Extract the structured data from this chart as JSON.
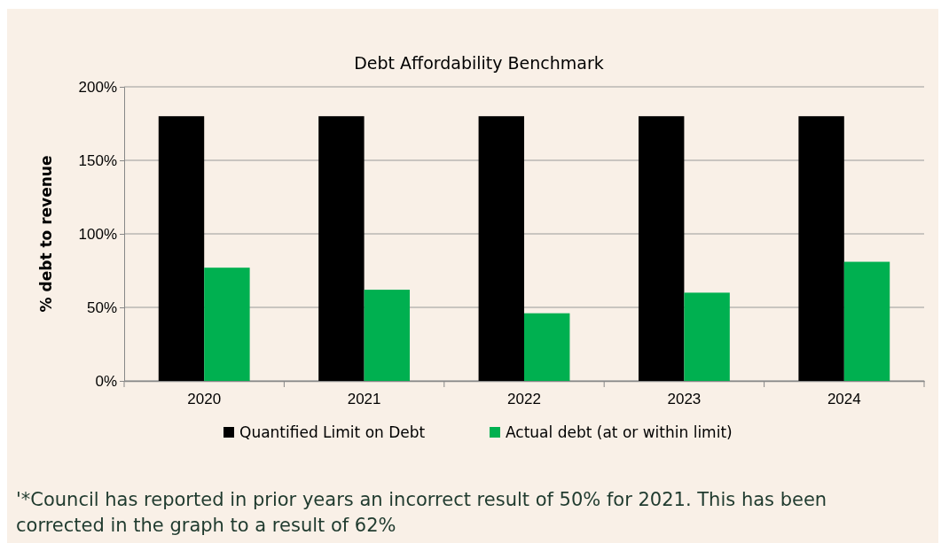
{
  "chart_data": {
    "type": "bar",
    "title": "Debt Affordability Benchmark",
    "ylabel": "% debt to revenue",
    "categories": [
      "2020",
      "2021",
      "2022",
      "2023",
      "2024"
    ],
    "series": [
      {
        "name": "Quantified Limit on Debt",
        "color": "#000000",
        "values": [
          180,
          180,
          180,
          180,
          180
        ]
      },
      {
        "name": "Actual debt (at or within limit)",
        "color": "#00b050",
        "values": [
          77,
          62,
          46,
          60,
          81
        ]
      }
    ],
    "ylim": [
      0,
      200
    ],
    "yticks": [
      {
        "value": 0,
        "label": "0%"
      },
      {
        "value": 50,
        "label": "50%"
      },
      {
        "value": 100,
        "label": "100%"
      },
      {
        "value": 150,
        "label": "150%"
      },
      {
        "value": 200,
        "label": "200%"
      }
    ],
    "grid": "y",
    "legend": "bottom",
    "annotations": [
      "'*Council has reported in prior years an incorrect result of 50% for 2021. This has been corrected in the graph to a result of 62%"
    ]
  }
}
